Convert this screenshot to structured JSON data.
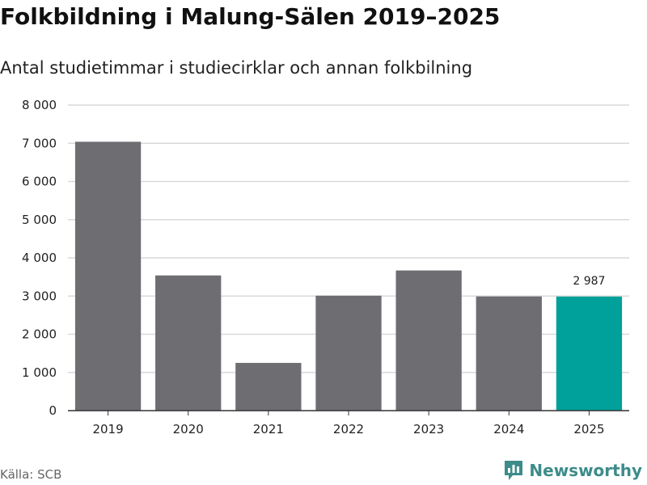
{
  "header": {
    "title": "Folkbildning i Malung-Sälen 2019–2025",
    "subtitle": "Antal studietimmar i studiecirklar och annan folkbilning"
  },
  "footer": {
    "source": "Källa: SCB",
    "brand": "Newsworthy",
    "brand_icon": "newsworthy-logo-icon"
  },
  "colors": {
    "bar": "#6e6d72",
    "highlight": "#00a19a",
    "grid": "#d9d9d9",
    "axis": "#333333"
  },
  "chart_data": {
    "type": "bar",
    "title": "Folkbildning i Malung-Sälen 2019–2025",
    "subtitle": "Antal studietimmar i studiecirklar och annan folkbilning",
    "xlabel": "",
    "ylabel": "",
    "categories": [
      "2019",
      "2020",
      "2021",
      "2022",
      "2023",
      "2024",
      "2025"
    ],
    "values": [
      7040,
      3540,
      1250,
      3010,
      3670,
      2990,
      2987
    ],
    "highlight_index": 6,
    "data_labels": [
      {
        "index": 6,
        "text": "2 987"
      }
    ],
    "ylim": [
      0,
      8000
    ],
    "yticks": [
      0,
      1000,
      2000,
      3000,
      4000,
      5000,
      6000,
      7000,
      8000
    ],
    "ytick_labels": [
      "0",
      "1 000",
      "2 000",
      "3 000",
      "4 000",
      "5 000",
      "6 000",
      "7 000",
      "8 000"
    ],
    "grid": true,
    "legend": "none"
  }
}
